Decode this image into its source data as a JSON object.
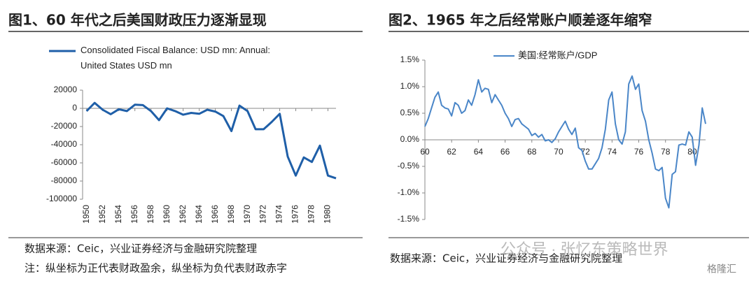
{
  "chart_data": [
    {
      "type": "line",
      "title": "图1、60 年代之后美国财政压力逐渐显现",
      "series": [
        {
          "name": "Consolidated Fiscal Balance: USD mn: Annual: United States USD mn",
          "color": "#1f5fa8",
          "values": [
            -3000,
            6000,
            -1500,
            -6500,
            -1000,
            -3000,
            4000,
            3500,
            -3000,
            -13000,
            0,
            -3000,
            -7000,
            -5000,
            -6000,
            -1500,
            -3500,
            -8500,
            -25000,
            3000,
            -3000,
            -23000,
            -23000,
            -15000,
            -6000,
            -53000,
            -74000,
            -54000,
            -59000,
            -41000,
            -74000,
            -77000
          ]
        }
      ],
      "x": [
        1950,
        1951,
        1952,
        1953,
        1954,
        1955,
        1956,
        1957,
        1958,
        1959,
        1960,
        1961,
        1962,
        1963,
        1964,
        1965,
        1966,
        1967,
        1968,
        1969,
        1970,
        1971,
        1972,
        1973,
        1974,
        1975,
        1976,
        1977,
        1978,
        1979,
        1980,
        1981
      ],
      "xlim": [
        1949.5,
        1981
      ],
      "xticks": [
        1950,
        1952,
        1954,
        1956,
        1958,
        1960,
        1962,
        1964,
        1966,
        1968,
        1970,
        1972,
        1974,
        1976,
        1978,
        1980
      ],
      "ylim": [
        -100000,
        20000
      ],
      "yticks": [
        20000,
        0,
        -20000,
        -40000,
        -60000,
        -80000,
        -100000
      ],
      "source": "数据来源：Ceic，兴业证券经济与金融研究院整理",
      "note": "注：纵坐标为正代表财政盈余，纵坐标为负代表财政赤字"
    },
    {
      "type": "line",
      "title": "图2、1965 年之后经常账户顺差逐年缩窄",
      "series": [
        {
          "name": "美国:经常账户/GDP",
          "color": "#4a86c8",
          "values": [
            0.25,
            0.4,
            0.6,
            0.8,
            0.9,
            0.65,
            0.6,
            0.58,
            0.45,
            0.7,
            0.65,
            0.5,
            0.55,
            0.75,
            0.65,
            0.85,
            1.13,
            0.9,
            0.97,
            0.95,
            0.7,
            0.85,
            0.75,
            0.65,
            0.5,
            0.4,
            0.25,
            0.38,
            0.4,
            0.3,
            0.25,
            0.2,
            0.08,
            0.12,
            0.05,
            0.1,
            -0.02,
            0.0,
            -0.05,
            0.02,
            0.15,
            0.25,
            0.35,
            0.2,
            0.1,
            0.22,
            -0.15,
            -0.2,
            -0.4,
            -0.55,
            -0.55,
            -0.45,
            -0.35,
            -0.15,
            0.2,
            0.75,
            0.9,
            0.3,
            0.0,
            -0.08,
            0.15,
            1.05,
            1.2,
            0.95,
            1.05,
            0.55,
            0.35,
            0.0,
            -0.25,
            -0.55,
            -0.58,
            -0.52,
            -1.1,
            -1.28,
            -0.65,
            -0.6,
            -0.1,
            -0.08,
            -0.1,
            0.15,
            0.05,
            -0.48,
            -0.1,
            0.6,
            0.3
          ]
        }
      ],
      "x": [
        60,
        60.25,
        60.5,
        60.75,
        61,
        61.25,
        61.5,
        61.75,
        62,
        62.25,
        62.5,
        62.75,
        63,
        63.25,
        63.5,
        63.75,
        64,
        64.25,
        64.5,
        64.75,
        65,
        65.25,
        65.5,
        65.75,
        66,
        66.25,
        66.5,
        66.75,
        67,
        67.25,
        67.5,
        67.75,
        68,
        68.25,
        68.5,
        68.75,
        69,
        69.25,
        69.5,
        69.75,
        70,
        70.25,
        70.5,
        70.75,
        71,
        71.25,
        71.5,
        71.75,
        72,
        72.25,
        72.5,
        72.75,
        73,
        73.25,
        73.5,
        73.75,
        74,
        74.25,
        74.5,
        74.75,
        75,
        75.25,
        75.5,
        75.75,
        76,
        76.25,
        76.5,
        76.75,
        77,
        77.25,
        77.5,
        77.75,
        78,
        78.25,
        78.5,
        78.75,
        79,
        79.25,
        79.5,
        79.75,
        80,
        80.25,
        80.5,
        80.75,
        81
      ],
      "xlim": [
        60,
        81
      ],
      "xticks": [
        60,
        62,
        64,
        66,
        68,
        70,
        72,
        74,
        76,
        78,
        80
      ],
      "ylim": [
        -1.5,
        1.5
      ],
      "yticks": [
        {
          "value": 1.5,
          "label": "1.5%"
        },
        {
          "value": 1.0,
          "label": "1.0%"
        },
        {
          "value": 0.5,
          "label": "0.5%"
        },
        {
          "value": 0.0,
          "label": "0.0%"
        },
        {
          "value": -0.5,
          "label": "-0.5%"
        },
        {
          "value": -1.0,
          "label": "-1.0%"
        },
        {
          "value": -1.5,
          "label": "-1.5%"
        }
      ],
      "source": "数据来源：Ceic，兴业证券经济与金融研究院整理"
    }
  ],
  "watermark": "公众号 · 张忆东策略世界",
  "logo": "格隆汇"
}
